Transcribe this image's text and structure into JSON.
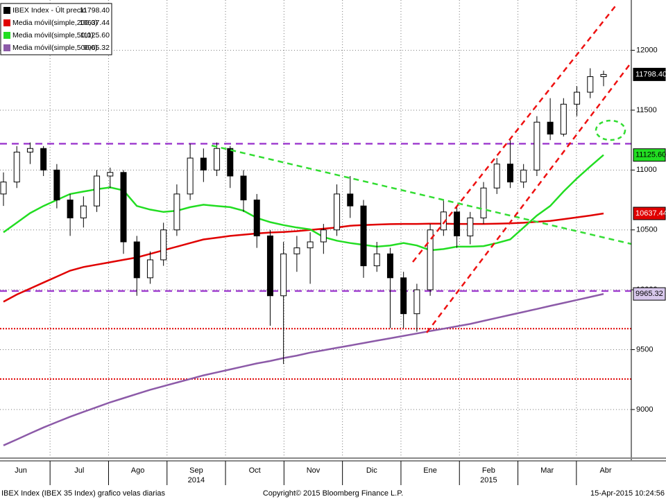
{
  "chart_data": {
    "type": "candlestick",
    "legend": [
      {
        "name": "IBEX Index - Últ precio",
        "color": "#000000",
        "last_label": "11798.40"
      },
      {
        "name": "Media móvil(simple,200,0)",
        "color": "#e00000",
        "last_label": "10637.44"
      },
      {
        "name": "Media móvil(simple,50,0)",
        "color": "#22dd22",
        "last_label": "11125.60"
      },
      {
        "name": "Media móvil(simple,500,0)",
        "color": "#8c5aa8",
        "last_label": "9965.32"
      }
    ],
    "candles": [
      [
        10800,
        10980,
        10700,
        10900
      ],
      [
        10900,
        11200,
        10850,
        11150
      ],
      [
        11150,
        11230,
        11050,
        11180
      ],
      [
        11180,
        11200,
        10950,
        11000
      ],
      [
        11000,
        11050,
        10680,
        10750
      ],
      [
        10750,
        10800,
        10450,
        10600
      ],
      [
        10600,
        10780,
        10520,
        10700
      ],
      [
        10700,
        11000,
        10650,
        10950
      ],
      [
        10950,
        11020,
        10850,
        10980
      ],
      [
        10980,
        11000,
        10300,
        10400
      ],
      [
        10400,
        10450,
        9950,
        10100
      ],
      [
        10100,
        10320,
        10050,
        10250
      ],
      [
        10250,
        10560,
        10200,
        10500
      ],
      [
        10500,
        10880,
        10450,
        10800
      ],
      [
        10800,
        11220,
        10750,
        11100
      ],
      [
        11100,
        11180,
        10900,
        11000
      ],
      [
        11000,
        11230,
        10950,
        11180
      ],
      [
        11180,
        11200,
        10850,
        10950
      ],
      [
        10950,
        11000,
        10650,
        10750
      ],
      [
        10750,
        10800,
        10350,
        10450
      ],
      [
        10450,
        10500,
        9700,
        9950
      ],
      [
        9950,
        10400,
        9380,
        10300
      ],
      [
        10300,
        10450,
        10150,
        10350
      ],
      [
        10350,
        10480,
        10050,
        10400
      ],
      [
        10400,
        10550,
        10300,
        10500
      ],
      [
        10500,
        10880,
        10450,
        10800
      ],
      [
        10800,
        10950,
        10600,
        10700
      ],
      [
        10700,
        10750,
        10100,
        10200
      ],
      [
        10200,
        10400,
        10150,
        10300
      ],
      [
        10300,
        10350,
        9680,
        10100
      ],
      [
        10100,
        10150,
        9680,
        9800
      ],
      [
        9800,
        10050,
        9650,
        10000
      ],
      [
        10000,
        10550,
        9950,
        10500
      ],
      [
        10500,
        10750,
        10450,
        10650
      ],
      [
        10650,
        10700,
        10350,
        10450
      ],
      [
        10450,
        10650,
        10380,
        10600
      ],
      [
        10600,
        10900,
        10550,
        10850
      ],
      [
        10850,
        11100,
        10800,
        11050
      ],
      [
        11050,
        11250,
        10850,
        10900
      ],
      [
        10900,
        11050,
        10850,
        11000
      ],
      [
        11000,
        11450,
        10950,
        11400
      ],
      [
        11400,
        11600,
        11250,
        11300
      ],
      [
        11300,
        11600,
        11280,
        11550
      ],
      [
        11550,
        11700,
        11450,
        11650
      ],
      [
        11650,
        11850,
        11600,
        11780
      ],
      [
        11780,
        11830,
        11700,
        11798.4
      ]
    ],
    "moving_averages": [
      {
        "legend_index": 1,
        "values": [
          9900,
          9960,
          10010,
          10060,
          10110,
          10160,
          10190,
          10210,
          10230,
          10250,
          10270,
          10300,
          10330,
          10360,
          10390,
          10420,
          10435,
          10450,
          10460,
          10470,
          10478,
          10482,
          10490,
          10500,
          10510,
          10520,
          10535,
          10540,
          10545,
          10548,
          10550,
          10550,
          10552,
          10552,
          10550,
          10550,
          10550,
          10552,
          10555,
          10560,
          10568,
          10575,
          10590,
          10605,
          10620,
          10637.44
        ]
      },
      {
        "legend_index": 2,
        "values": [
          10480,
          10560,
          10640,
          10700,
          10750,
          10800,
          10820,
          10840,
          10855,
          10830,
          10700,
          10670,
          10650,
          10660,
          10690,
          10710,
          10700,
          10690,
          10660,
          10600,
          10565,
          10540,
          10520,
          10505,
          10440,
          10410,
          10390,
          10375,
          10360,
          10370,
          10390,
          10370,
          10330,
          10340,
          10360,
          10360,
          10365,
          10390,
          10420,
          10520,
          10620,
          10700,
          10820,
          10930,
          11030,
          11125.6
        ]
      },
      {
        "legend_index": 3,
        "values": [
          8700,
          8750,
          8800,
          8850,
          8895,
          8940,
          8980,
          9020,
          9060,
          9095,
          9130,
          9165,
          9195,
          9225,
          9255,
          9285,
          9310,
          9335,
          9360,
          9385,
          9405,
          9430,
          9450,
          9475,
          9495,
          9515,
          9535,
          9555,
          9575,
          9595,
          9615,
          9635,
          9655,
          9675,
          9695,
          9715,
          9740,
          9765,
          9790,
          9815,
          9840,
          9865,
          9890,
          9915,
          9940,
          9965.32
        ]
      }
    ],
    "levels": [
      {
        "value": 11220,
        "color": "#a040d0",
        "style": "dashed"
      },
      {
        "value": 9990,
        "color": "#a040d0",
        "style": "dashed"
      },
      {
        "value": 9675,
        "color": "#e00000",
        "style": "dotted"
      },
      {
        "value": 9255,
        "color": "#e00000",
        "style": "dotted"
      }
    ],
    "categories": [
      "Jun",
      "Jul",
      "Ago",
      "Sep",
      "Oct",
      "Nov",
      "Dic",
      "Ene",
      "Feb",
      "Mar",
      "Abr"
    ],
    "year_labels": [
      "2014",
      "2015"
    ],
    "ylim": [
      8600,
      12420
    ],
    "yticks": [
      9000,
      9500,
      10000,
      10500,
      11000,
      11500,
      12000
    ],
    "grid": true,
    "footer_left": "IBEX Index (IBEX 35 Index) grafico velas diarias",
    "footer_center": "Copyright© 2015 Bloomberg Finance L.P.",
    "footer_right": "15-Apr-2015 10:24:56"
  }
}
